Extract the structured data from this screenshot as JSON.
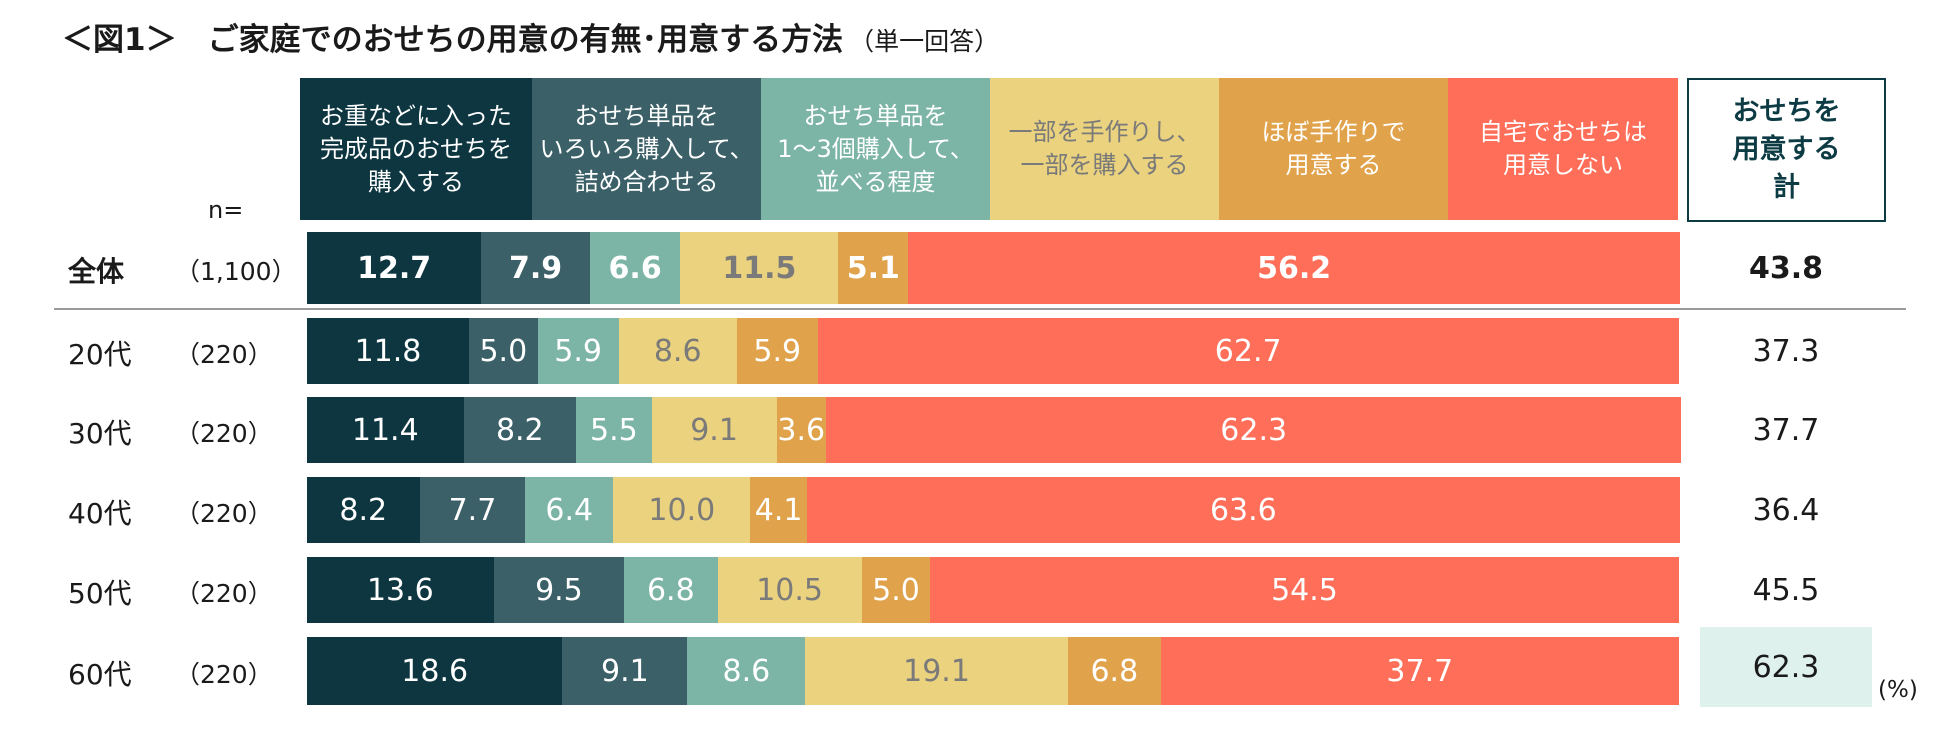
{
  "title": {
    "main": "＜図1＞　ご家庭でのおせちの用意の有無･用意する方法",
    "sub": "（単一回答）"
  },
  "n_label": "n=",
  "unit_label": "(%)",
  "total_header": "おせちを\n用意する\n計",
  "colors": {
    "c1": "#0d3640",
    "c2": "#3b6068",
    "c3": "#7cb5a6",
    "c4": "#ead27e",
    "c5": "#e0a24a",
    "c6": "#fe6e58",
    "highlight": "#dff1ec"
  },
  "chart_data": {
    "type": "bar",
    "orientation": "horizontal",
    "stacked": true,
    "title": "ご家庭でのおせちの用意の有無･用意する方法",
    "xlim": [
      0,
      100
    ],
    "unit": "%",
    "series": [
      {
        "name": "お重などに入った\n完成品のおせちを\n購入する",
        "color": "#0d3640",
        "text_color": "#ffffff",
        "values": [
          12.7,
          11.8,
          11.4,
          8.2,
          13.6,
          18.6
        ]
      },
      {
        "name": "おせち単品を\nいろいろ購入して、\n詰め合わせる",
        "color": "#3b6068",
        "text_color": "#ffffff",
        "values": [
          7.9,
          5.0,
          8.2,
          7.7,
          9.5,
          9.1
        ]
      },
      {
        "name": "おせち単品を\n1～3個購入して、\n並べる程度",
        "color": "#7cb5a6",
        "text_color": "#ffffff",
        "values": [
          6.6,
          5.9,
          5.5,
          6.4,
          6.8,
          8.6
        ]
      },
      {
        "name": "一部を手作りし、\n一部を購入する",
        "color": "#ead27e",
        "text_color": "#7a7a7a",
        "values": [
          11.5,
          8.6,
          9.1,
          10.0,
          10.5,
          19.1
        ]
      },
      {
        "name": "ほぼ手作りで\n用意する",
        "color": "#e0a24a",
        "text_color": "#ffffff",
        "values": [
          5.1,
          5.9,
          3.6,
          4.1,
          5.0,
          6.8
        ]
      },
      {
        "name": "自宅でおせちは\n用意しない",
        "color": "#fe6e58",
        "text_color": "#ffffff",
        "values": [
          56.2,
          62.7,
          62.3,
          63.6,
          54.5,
          37.7
        ]
      }
    ],
    "rows": [
      {
        "label": "全体",
        "n": "（1,100）",
        "total": "43.8",
        "bold": true,
        "highlight": false
      },
      {
        "label": "20代",
        "n": "（220）",
        "total": "37.3",
        "bold": false,
        "highlight": false
      },
      {
        "label": "30代",
        "n": "（220）",
        "total": "37.7",
        "bold": false,
        "highlight": false
      },
      {
        "label": "40代",
        "n": "（220）",
        "total": "36.4",
        "bold": false,
        "highlight": false
      },
      {
        "label": "50代",
        "n": "（220）",
        "total": "45.5",
        "bold": false,
        "highlight": false
      },
      {
        "label": "60代",
        "n": "（220）",
        "total": "62.3",
        "bold": false,
        "highlight": true
      }
    ]
  }
}
